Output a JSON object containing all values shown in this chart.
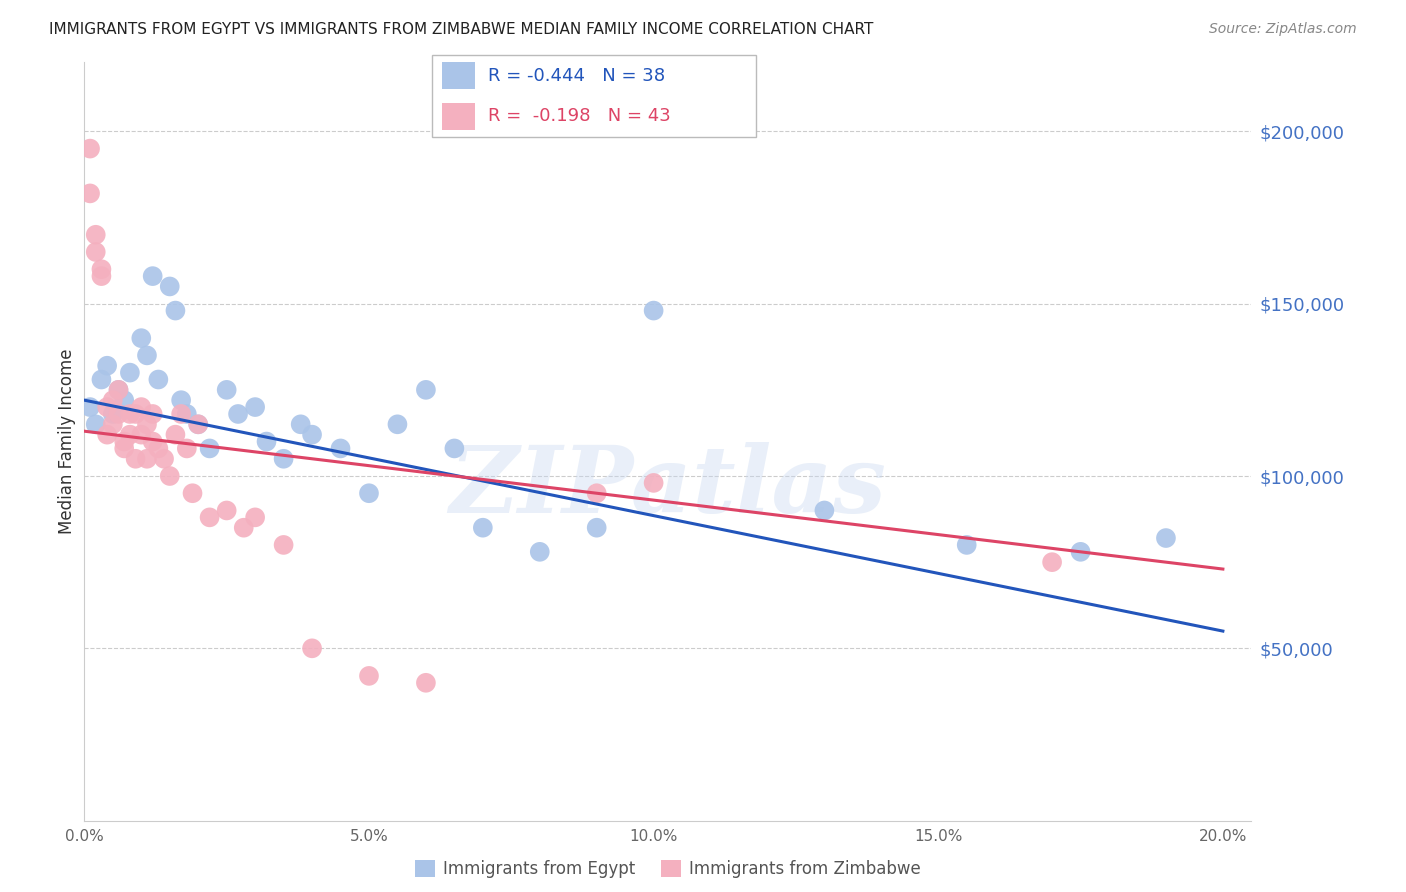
{
  "title": "IMMIGRANTS FROM EGYPT VS IMMIGRANTS FROM ZIMBABWE MEDIAN FAMILY INCOME CORRELATION CHART",
  "source": "Source: ZipAtlas.com",
  "ylabel": "Median Family Income",
  "xlabel_ticks": [
    "0.0%",
    "5.0%",
    "10.0%",
    "15.0%",
    "20.0%"
  ],
  "xlabel_vals": [
    0.0,
    0.05,
    0.1,
    0.15,
    0.2
  ],
  "ylabel_ticks": [
    50000,
    100000,
    150000,
    200000
  ],
  "ylabel_labels": [
    "$50,000",
    "$100,000",
    "$150,000",
    "$200,000"
  ],
  "xlim": [
    0.0,
    0.205
  ],
  "ylim": [
    0,
    220000
  ],
  "egypt_color": "#aac4e8",
  "zimbabwe_color": "#f4b0bf",
  "egypt_line_color": "#2255bb",
  "zimbabwe_line_color": "#dd4466",
  "legend_R_egypt": "-0.444",
  "legend_N_egypt": "38",
  "legend_R_zimbabwe": "-0.198",
  "legend_N_zimbabwe": "43",
  "watermark_text": "ZIPatlas",
  "egypt_x": [
    0.001,
    0.002,
    0.003,
    0.004,
    0.005,
    0.006,
    0.007,
    0.008,
    0.01,
    0.011,
    0.012,
    0.013,
    0.015,
    0.016,
    0.017,
    0.018,
    0.02,
    0.022,
    0.025,
    0.027,
    0.03,
    0.032,
    0.035,
    0.038,
    0.04,
    0.045,
    0.05,
    0.055,
    0.06,
    0.065,
    0.07,
    0.08,
    0.09,
    0.1,
    0.13,
    0.155,
    0.175,
    0.19
  ],
  "egypt_y": [
    120000,
    115000,
    128000,
    132000,
    118000,
    125000,
    122000,
    130000,
    140000,
    135000,
    158000,
    128000,
    155000,
    148000,
    122000,
    118000,
    115000,
    108000,
    125000,
    118000,
    120000,
    110000,
    105000,
    115000,
    112000,
    108000,
    95000,
    115000,
    125000,
    108000,
    85000,
    78000,
    85000,
    148000,
    90000,
    80000,
    78000,
    82000
  ],
  "zimbabwe_x": [
    0.001,
    0.001,
    0.002,
    0.002,
    0.003,
    0.003,
    0.004,
    0.004,
    0.005,
    0.005,
    0.006,
    0.006,
    0.007,
    0.007,
    0.008,
    0.008,
    0.009,
    0.009,
    0.01,
    0.01,
    0.011,
    0.011,
    0.012,
    0.012,
    0.013,
    0.014,
    0.015,
    0.016,
    0.017,
    0.018,
    0.019,
    0.02,
    0.022,
    0.025,
    0.028,
    0.03,
    0.035,
    0.04,
    0.05,
    0.06,
    0.09,
    0.1,
    0.17
  ],
  "zimbabwe_y": [
    195000,
    182000,
    170000,
    165000,
    160000,
    158000,
    120000,
    112000,
    115000,
    122000,
    125000,
    118000,
    110000,
    108000,
    118000,
    112000,
    105000,
    118000,
    112000,
    120000,
    105000,
    115000,
    118000,
    110000,
    108000,
    105000,
    100000,
    112000,
    118000,
    108000,
    95000,
    115000,
    88000,
    90000,
    85000,
    88000,
    80000,
    50000,
    42000,
    40000,
    95000,
    98000,
    75000
  ],
  "egypt_line_x": [
    0.0,
    0.2
  ],
  "egypt_line_y": [
    122000,
    55000
  ],
  "zimbabwe_line_x": [
    0.0,
    0.2
  ],
  "zimbabwe_line_y": [
    113000,
    73000
  ]
}
